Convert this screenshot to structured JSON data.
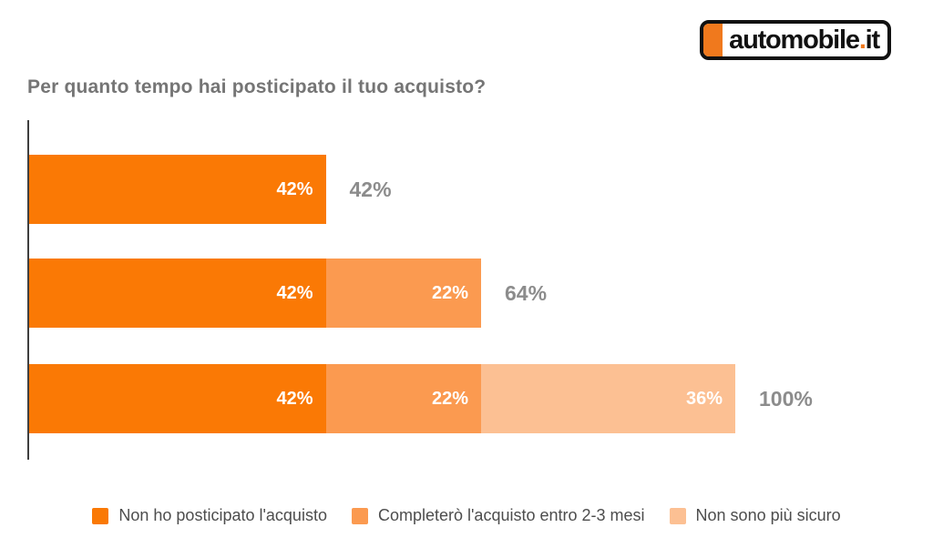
{
  "logo": {
    "text_main": "automobile",
    "dot": ".",
    "text_tld": "it"
  },
  "colors": {
    "brand_orange": "#F0791D",
    "bar_orange_dark": "#FA7905",
    "bar_orange_medium": "#FB9A50",
    "bar_orange_light": "#FCC093",
    "title_gray": "#757575",
    "total_label_gray": "#8C8C8C",
    "legend_text_gray": "#4D4D4D",
    "axis_gray": "#3F3F3F",
    "inside_label_white": "#FFFFFF"
  },
  "chart_data": {
    "type": "bar",
    "orientation": "horizontal",
    "stacked": true,
    "title": "Per quanto tempo hai posticipato il tuo acquisto?",
    "xlabel": "",
    "ylabel": "",
    "xlim": [
      0,
      100
    ],
    "unit": "%",
    "grid": false,
    "legend_position": "bottom",
    "series": [
      {
        "name": "Non ho posticipato l'acquisto",
        "color": "#FA7905"
      },
      {
        "name": "Completerò l'acquisto entro 2-3 mesi",
        "color": "#FB9A50"
      },
      {
        "name": "Non sono più sicuro",
        "color": "#FCC093"
      }
    ],
    "rows": [
      {
        "segments": [
          {
            "series": 0,
            "value": 42,
            "label": "42%"
          }
        ],
        "total": 42,
        "total_label": "42%"
      },
      {
        "segments": [
          {
            "series": 0,
            "value": 42,
            "label": "42%"
          },
          {
            "series": 1,
            "value": 22,
            "label": "22%"
          }
        ],
        "total": 64,
        "total_label": "64%"
      },
      {
        "segments": [
          {
            "series": 0,
            "value": 42,
            "label": "42%"
          },
          {
            "series": 1,
            "value": 22,
            "label": "22%"
          },
          {
            "series": 2,
            "value": 36,
            "label": "36%"
          }
        ],
        "total": 100,
        "total_label": "100%"
      }
    ]
  }
}
